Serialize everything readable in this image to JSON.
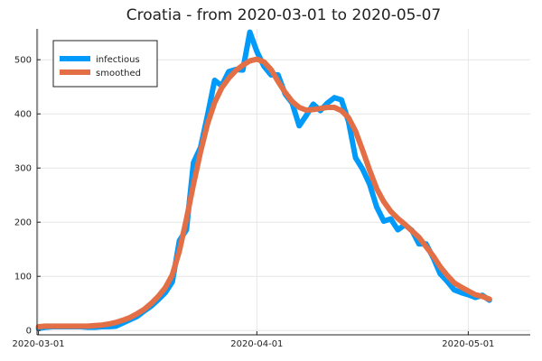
{
  "chart_data": {
    "type": "line",
    "title": "Croatia - from 2020-03-01 to 2020-05-07",
    "xlabel": "",
    "ylabel": "",
    "grid": true,
    "legend_position": "top-left",
    "x_ticks": [
      {
        "day": 0,
        "label": "2020-03-01"
      },
      {
        "day": 31,
        "label": "2020-04-01"
      },
      {
        "day": 61,
        "label": "2020-05-01"
      }
    ],
    "y_ticks": [
      0,
      100,
      200,
      300,
      400,
      500
    ],
    "xlim": [
      -0.2,
      69.8
    ],
    "ylim": [
      -8,
      557
    ],
    "x_start_date": "2020-03-01",
    "series": [
      {
        "name": "infectious",
        "color": "#009AFA",
        "width": 6,
        "x": [
          0,
          1,
          2,
          3,
          4,
          5,
          6,
          7,
          8,
          9,
          10,
          11,
          12,
          13,
          14,
          15,
          16,
          17,
          18,
          19,
          20,
          21,
          22,
          23,
          24,
          25,
          26,
          27,
          28,
          29,
          30,
          31,
          32,
          33,
          34,
          35,
          36,
          37,
          38,
          39,
          40,
          41,
          42,
          43,
          44,
          45,
          46,
          47,
          48,
          49,
          50,
          51,
          52,
          53,
          54,
          55,
          56,
          57,
          58,
          59,
          60,
          61,
          62,
          63,
          64,
          65,
          66,
          67,
          68,
          69
        ],
        "values": [
          4,
          6,
          7,
          7,
          7,
          7,
          7,
          6,
          6,
          7,
          7,
          8,
          14,
          20,
          26,
          36,
          45,
          57,
          70,
          90,
          166,
          186,
          310,
          338,
          398,
          462,
          452,
          478,
          482,
          481,
          551,
          515,
          488,
          472,
          472,
          437,
          420,
          378,
          397,
          418,
          406,
          420,
          430,
          426,
          386,
          319,
          298,
          270,
          228,
          202,
          206,
          186,
          195,
          185,
          160,
          160,
          135,
          105,
          91,
          75,
          70,
          66,
          61,
          65,
          56,
          null,
          null,
          null,
          null,
          null
        ]
      },
      {
        "name": "smoothed",
        "color": "#E26F46",
        "width": 6,
        "x": [
          0,
          1,
          2,
          3,
          4,
          5,
          6,
          7,
          8,
          9,
          10,
          11,
          12,
          13,
          14,
          15,
          16,
          17,
          18,
          19,
          20,
          21,
          22,
          23,
          24,
          25,
          26,
          27,
          28,
          29,
          30,
          31,
          32,
          33,
          34,
          35,
          36,
          37,
          38,
          39,
          40,
          41,
          42,
          43,
          44,
          45,
          46,
          47,
          48,
          49,
          50,
          51,
          52,
          53,
          54,
          55,
          56,
          57,
          58,
          59,
          60,
          61,
          62,
          63,
          64,
          65,
          66,
          67,
          68,
          69
        ],
        "values": [
          7,
          8,
          8,
          8,
          8,
          8,
          8,
          8,
          9,
          10,
          12,
          15,
          19,
          24,
          31,
          39,
          50,
          63,
          79,
          103,
          147,
          206,
          270,
          330,
          382,
          421,
          448,
          466,
          480,
          490,
          498,
          501,
          496,
          482,
          460,
          440,
          423,
          412,
          407,
          408,
          410,
          412,
          412,
          406,
          393,
          368,
          333,
          296,
          262,
          238,
          220,
          207,
          196,
          184,
          172,
          155,
          138,
          118,
          102,
          88,
          80,
          73,
          66,
          63,
          58,
          null,
          null,
          null,
          null,
          null
        ]
      }
    ]
  }
}
